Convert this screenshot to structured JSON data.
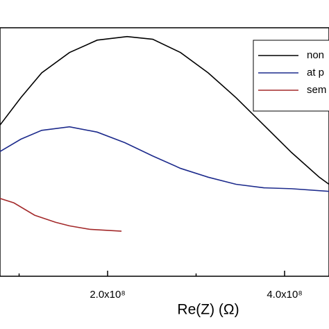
{
  "chart_data": {
    "type": "line",
    "x_label": "Re(Z) (Ω)",
    "xlim": [
      78400000,
      450200000
    ],
    "ylim": [
      0,
      281000000
    ],
    "xticks": [
      {
        "value": 200000000,
        "label": "2.0x10⁸"
      },
      {
        "value": 400000000,
        "label": "4.0x10⁸"
      }
    ],
    "xminorticks": [
      100000000,
      300000000
    ],
    "series": [
      {
        "name": "non",
        "color": "#000000",
        "x": [
          78400000,
          102000000,
          125500000,
          156900000,
          188200000,
          222000000,
          251000000,
          282400000,
          313700000,
          345100000,
          376500000,
          407800000,
          439200000,
          450200000
        ],
        "values": [
          171000000,
          202000000,
          230000000,
          253000000,
          267000000,
          271000000,
          268000000,
          253000000,
          230000000,
          202000000,
          171000000,
          140000000,
          112000000,
          104000000
        ]
      },
      {
        "name": "at p",
        "color": "#1c2a8c",
        "x": [
          78400000,
          102000000,
          125500000,
          156900000,
          188200000,
          219600000,
          251000000,
          282400000,
          313700000,
          345100000,
          376500000,
          407800000,
          450200000
        ],
        "values": [
          141000000,
          155000000,
          165000000,
          169000000,
          163000000,
          151000000,
          136000000,
          122000000,
          112000000,
          104000000,
          100000000,
          99000000,
          96000000
        ]
      },
      {
        "name": "sem",
        "color": "#a3292a",
        "x": [
          78400000,
          94100000,
          117600000,
          141200000,
          156900000,
          180400000,
          215700000
        ],
        "values": [
          88000000,
          83000000,
          69000000,
          61000000,
          57000000,
          53000000,
          51000000
        ]
      }
    ],
    "legend_position": "upper right"
  }
}
